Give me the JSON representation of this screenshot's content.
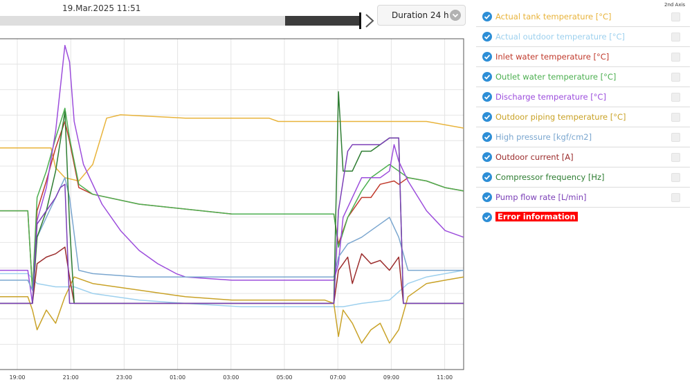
{
  "header": {
    "timestamp": "19.Mar.2025 11:51",
    "duration": "Duration 24 h",
    "slider_progress": 0.21
  },
  "legend_header": "2nd Axis",
  "legend": [
    {
      "label": "Actual tank temperature [°C]",
      "color": "#e8b33a"
    },
    {
      "label": "Actual outdoor temperature [°C]",
      "color": "#9dd0ee"
    },
    {
      "label": "Inlet water temperature [°C]",
      "color": "#c0392b"
    },
    {
      "label": "Outlet water temperature [°C]",
      "color": "#4caf50"
    },
    {
      "label": "Discharge temperature [°C]",
      "color": "#9c4ddc"
    },
    {
      "label": "Outdoor piping temperature [°C]",
      "color": "#c9a227"
    },
    {
      "label": "High pressure [kgf/cm2]",
      "color": "#7aa6cf"
    },
    {
      "label": "Outdoor current [A]",
      "color": "#9b2c2c"
    },
    {
      "label": "Compressor frequency [Hz]",
      "color": "#2e7d32"
    },
    {
      "label": "Pump flow rate [L/min]",
      "color": "#7b3fb7"
    },
    {
      "label": "Error information",
      "color": "#ff0000"
    }
  ],
  "chart_data": {
    "type": "line",
    "x_ticks": [
      "19:00",
      "21:00",
      "23:00",
      "01:00",
      "03:00",
      "05:00",
      "07:00",
      "09:00",
      "11:00"
    ],
    "x_range": [
      0,
      100
    ],
    "y_range": [
      0,
      100
    ],
    "grid": true,
    "series": [
      {
        "name": "Actual tank temperature [°C]",
        "color": "#e8b33a",
        "points": [
          [
            0,
            67
          ],
          [
            11,
            67
          ],
          [
            12,
            61
          ],
          [
            14,
            58
          ],
          [
            17,
            57
          ],
          [
            20,
            62
          ],
          [
            23,
            76
          ],
          [
            26,
            77
          ],
          [
            40,
            76
          ],
          [
            58,
            76
          ],
          [
            60,
            75
          ],
          [
            70,
            75
          ],
          [
            84,
            75
          ],
          [
            92,
            75
          ],
          [
            100,
            73
          ]
        ]
      },
      {
        "name": "Actual outdoor temperature [°C]",
        "color": "#9dd0ee",
        "points": [
          [
            0,
            29
          ],
          [
            6,
            29
          ],
          [
            8,
            26
          ],
          [
            12,
            25
          ],
          [
            16,
            25
          ],
          [
            20,
            23
          ],
          [
            30,
            21
          ],
          [
            40,
            20
          ],
          [
            52,
            19
          ],
          [
            60,
            19
          ],
          [
            70,
            19
          ],
          [
            74,
            19
          ],
          [
            78,
            20
          ],
          [
            84,
            21
          ],
          [
            88,
            26
          ],
          [
            92,
            28
          ],
          [
            100,
            30
          ]
        ]
      },
      {
        "name": "Inlet water temperature [°C]",
        "color": "#c0392b",
        "points": [
          [
            0,
            48
          ],
          [
            6,
            48
          ],
          [
            7,
            24
          ],
          [
            8,
            48
          ],
          [
            10,
            57
          ],
          [
            12,
            67
          ],
          [
            14,
            75
          ],
          [
            15,
            69
          ],
          [
            17,
            55
          ],
          [
            20,
            53
          ],
          [
            30,
            50
          ],
          [
            50,
            47
          ],
          [
            70,
            47
          ],
          [
            72,
            47
          ],
          [
            73,
            38
          ],
          [
            75,
            46
          ],
          [
            78,
            52
          ],
          [
            80,
            52
          ],
          [
            82,
            56
          ],
          [
            85,
            57
          ],
          [
            86,
            56
          ],
          [
            88,
            58
          ],
          [
            92,
            57
          ],
          [
            96,
            55
          ],
          [
            100,
            54
          ]
        ]
      },
      {
        "name": "Outlet water temperature [°C]",
        "color": "#4caf50",
        "points": [
          [
            0,
            48
          ],
          [
            6,
            48
          ],
          [
            7,
            24
          ],
          [
            8,
            52
          ],
          [
            10,
            60
          ],
          [
            12,
            70
          ],
          [
            14,
            79
          ],
          [
            15,
            70
          ],
          [
            17,
            56
          ],
          [
            20,
            53
          ],
          [
            30,
            50
          ],
          [
            50,
            47
          ],
          [
            70,
            47
          ],
          [
            72,
            47
          ],
          [
            73,
            37
          ],
          [
            75,
            46
          ],
          [
            78,
            54
          ],
          [
            80,
            58
          ],
          [
            84,
            62
          ],
          [
            86,
            60
          ],
          [
            88,
            58
          ],
          [
            92,
            57
          ],
          [
            96,
            55
          ],
          [
            100,
            54
          ]
        ]
      },
      {
        "name": "Discharge temperature [°C]",
        "color": "#9c4ddc",
        "points": [
          [
            0,
            30
          ],
          [
            6,
            30
          ],
          [
            7,
            20
          ],
          [
            8,
            45
          ],
          [
            10,
            55
          ],
          [
            12,
            72
          ],
          [
            14,
            98
          ],
          [
            15,
            93
          ],
          [
            16,
            75
          ],
          [
            18,
            62
          ],
          [
            22,
            50
          ],
          [
            26,
            42
          ],
          [
            30,
            36
          ],
          [
            34,
            32
          ],
          [
            38,
            29
          ],
          [
            40,
            28
          ],
          [
            50,
            27
          ],
          [
            70,
            27
          ],
          [
            72,
            27
          ],
          [
            73,
            32
          ],
          [
            74,
            46
          ],
          [
            76,
            52
          ],
          [
            78,
            58
          ],
          [
            80,
            58
          ],
          [
            82,
            58
          ],
          [
            84,
            60
          ],
          [
            85,
            68
          ],
          [
            86,
            63
          ],
          [
            88,
            57
          ],
          [
            92,
            48
          ],
          [
            96,
            42
          ],
          [
            100,
            40
          ]
        ]
      },
      {
        "name": "Outdoor piping temperature [°C]",
        "color": "#c9a227",
        "points": [
          [
            0,
            22
          ],
          [
            6,
            22
          ],
          [
            7,
            18
          ],
          [
            8,
            12
          ],
          [
            10,
            18
          ],
          [
            12,
            14
          ],
          [
            14,
            22
          ],
          [
            16,
            28
          ],
          [
            20,
            26
          ],
          [
            30,
            24
          ],
          [
            40,
            22
          ],
          [
            50,
            21
          ],
          [
            70,
            21
          ],
          [
            72,
            20
          ],
          [
            73,
            10
          ],
          [
            74,
            18
          ],
          [
            76,
            14
          ],
          [
            78,
            8
          ],
          [
            80,
            12
          ],
          [
            82,
            14
          ],
          [
            84,
            8
          ],
          [
            86,
            12
          ],
          [
            88,
            22
          ],
          [
            92,
            26
          ],
          [
            96,
            27
          ],
          [
            100,
            28
          ]
        ]
      },
      {
        "name": "High pressure [kgf/cm2]",
        "color": "#7aa6cf",
        "points": [
          [
            0,
            27
          ],
          [
            6,
            27
          ],
          [
            7,
            24
          ],
          [
            8,
            40
          ],
          [
            10,
            46
          ],
          [
            12,
            52
          ],
          [
            14,
            58
          ],
          [
            15,
            52
          ],
          [
            17,
            30
          ],
          [
            20,
            29
          ],
          [
            30,
            28
          ],
          [
            50,
            28
          ],
          [
            70,
            28
          ],
          [
            72,
            28
          ],
          [
            73,
            34
          ],
          [
            75,
            38
          ],
          [
            78,
            40
          ],
          [
            80,
            42
          ],
          [
            82,
            44
          ],
          [
            84,
            46
          ],
          [
            86,
            40
          ],
          [
            88,
            30
          ],
          [
            92,
            30
          ],
          [
            96,
            30
          ],
          [
            100,
            30
          ]
        ]
      },
      {
        "name": "Outdoor current [A]",
        "color": "#9b2c2c",
        "points": [
          [
            0,
            20
          ],
          [
            6,
            20
          ],
          [
            7,
            20
          ],
          [
            8,
            32
          ],
          [
            10,
            34
          ],
          [
            12,
            35
          ],
          [
            14,
            37
          ],
          [
            15,
            28
          ],
          [
            16,
            20
          ],
          [
            30,
            20
          ],
          [
            50,
            20
          ],
          [
            70,
            20
          ],
          [
            72,
            20
          ],
          [
            73,
            30
          ],
          [
            75,
            34
          ],
          [
            76,
            26
          ],
          [
            78,
            35
          ],
          [
            80,
            32
          ],
          [
            82,
            33
          ],
          [
            84,
            30
          ],
          [
            86,
            34
          ],
          [
            87,
            20
          ],
          [
            90,
            20
          ],
          [
            100,
            20
          ]
        ]
      },
      {
        "name": "Compressor frequency [Hz]",
        "color": "#2e7d32",
        "points": [
          [
            0,
            20
          ],
          [
            6,
            20
          ],
          [
            7,
            20
          ],
          [
            8,
            40
          ],
          [
            10,
            48
          ],
          [
            12,
            60
          ],
          [
            14,
            78
          ],
          [
            15,
            44
          ],
          [
            16,
            20
          ],
          [
            30,
            20
          ],
          [
            50,
            20
          ],
          [
            70,
            20
          ],
          [
            72,
            20
          ],
          [
            73,
            84
          ],
          [
            74,
            60
          ],
          [
            76,
            60
          ],
          [
            78,
            66
          ],
          [
            80,
            66
          ],
          [
            82,
            68
          ],
          [
            84,
            70
          ],
          [
            86,
            70
          ],
          [
            87,
            20
          ],
          [
            90,
            20
          ],
          [
            100,
            20
          ]
        ]
      },
      {
        "name": "Pump flow rate [L/min]",
        "color": "#7b3fb7",
        "points": [
          [
            0,
            20
          ],
          [
            6,
            20
          ],
          [
            7,
            20
          ],
          [
            8,
            44
          ],
          [
            10,
            48
          ],
          [
            12,
            52
          ],
          [
            13,
            55
          ],
          [
            14,
            56
          ],
          [
            15,
            20
          ],
          [
            30,
            20
          ],
          [
            50,
            20
          ],
          [
            70,
            20
          ],
          [
            72,
            20
          ],
          [
            73,
            48
          ],
          [
            75,
            66
          ],
          [
            76,
            68
          ],
          [
            78,
            68
          ],
          [
            80,
            68
          ],
          [
            82,
            68
          ],
          [
            84,
            70
          ],
          [
            86,
            70
          ],
          [
            87,
            20
          ],
          [
            90,
            20
          ],
          [
            100,
            20
          ]
        ]
      }
    ]
  }
}
